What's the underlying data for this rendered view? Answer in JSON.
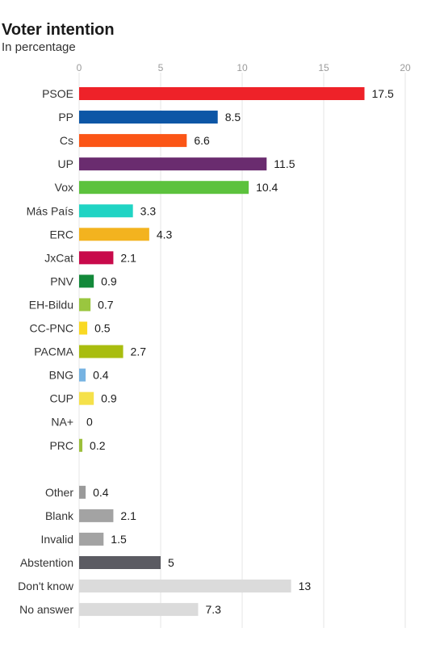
{
  "header": {
    "title": "Voter intention",
    "subtitle": "In percentage"
  },
  "chart_data": {
    "type": "bar",
    "orientation": "horizontal",
    "title": "Voter intention",
    "subtitle": "In percentage",
    "xlim": [
      0,
      20
    ],
    "ticks": [
      "0",
      "5",
      "10",
      "15",
      "20"
    ],
    "grid": true,
    "groups": [
      {
        "rows": [
          {
            "label": "PSOE",
            "value": 17.5,
            "display": "17.5",
            "color": "#ee2229"
          },
          {
            "label": "PP",
            "value": 8.5,
            "display": "8.5",
            "color": "#0d56a6"
          },
          {
            "label": "Cs",
            "value": 6.6,
            "display": "6.6",
            "color": "#fb5516"
          },
          {
            "label": "UP",
            "value": 11.5,
            "display": "11.5",
            "color": "#6a2c6f"
          },
          {
            "label": "Vox",
            "value": 10.4,
            "display": "10.4",
            "color": "#5cc23d"
          },
          {
            "label": "Más País",
            "value": 3.3,
            "display": "3.3",
            "color": "#20d4c4"
          },
          {
            "label": "ERC",
            "value": 4.3,
            "display": "4.3",
            "color": "#f3b31f"
          },
          {
            "label": "JxCat",
            "value": 2.1,
            "display": "2.1",
            "color": "#c80a4b"
          },
          {
            "label": "PNV",
            "value": 0.9,
            "display": "0.9",
            "color": "#13893a"
          },
          {
            "label": "EH-Bildu",
            "value": 0.7,
            "display": "0.7",
            "color": "#9ac63f"
          },
          {
            "label": "CC-PNC",
            "value": 0.5,
            "display": "0.5",
            "color": "#f9d923"
          },
          {
            "label": "PACMA",
            "value": 2.7,
            "display": "2.7",
            "color": "#a9bd0f"
          },
          {
            "label": "BNG",
            "value": 0.4,
            "display": "0.4",
            "color": "#76b3e2"
          },
          {
            "label": "CUP",
            "value": 0.9,
            "display": "0.9",
            "color": "#f5e14a"
          },
          {
            "label": "NA+",
            "value": 0,
            "display": "0",
            "color": "#888888"
          },
          {
            "label": "PRC",
            "value": 0.2,
            "display": "0.2",
            "color": "#9bbf3a"
          }
        ]
      },
      {
        "rows": [
          {
            "label": "Other",
            "value": 0.4,
            "display": "0.4",
            "color": "#9a9a9a"
          },
          {
            "label": "Blank",
            "value": 2.1,
            "display": "2.1",
            "color": "#a3a3a3"
          },
          {
            "label": "Invalid",
            "value": 1.5,
            "display": "1.5",
            "color": "#a3a3a3"
          },
          {
            "label": "Abstention",
            "value": 5,
            "display": "5",
            "color": "#5b5b62"
          },
          {
            "label": "Don't know",
            "value": 13,
            "display": "13",
            "color": "#dbdbdb"
          },
          {
            "label": "No answer",
            "value": 7.3,
            "display": "7.3",
            "color": "#dbdbdb"
          }
        ]
      }
    ]
  }
}
